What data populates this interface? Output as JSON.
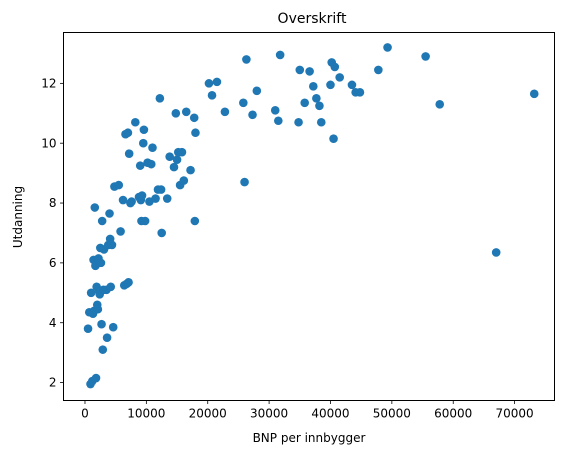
{
  "chart_data": {
    "type": "scatter",
    "title": "Overskrift",
    "xlabel": "BNP per innbygger",
    "ylabel": "Utdanning",
    "xlim": [
      -3500,
      76500
    ],
    "ylim": [
      1.4,
      13.7
    ],
    "x_ticks": [
      0,
      10000,
      20000,
      30000,
      40000,
      50000,
      60000,
      70000
    ],
    "x_tick_labels": [
      "0",
      "10000",
      "20000",
      "30000",
      "40000",
      "50000",
      "60000",
      "70000"
    ],
    "y_ticks": [
      2,
      4,
      6,
      8,
      10,
      12
    ],
    "y_tick_labels": [
      "2",
      "4",
      "6",
      "8",
      "10",
      "12"
    ],
    "grid": false,
    "legend": "none",
    "marker_color": "#1f77b4",
    "points": [
      [
        500,
        3.8
      ],
      [
        700,
        4.35
      ],
      [
        900,
        1.95
      ],
      [
        1000,
        5.0
      ],
      [
        1200,
        2.05
      ],
      [
        1300,
        4.3
      ],
      [
        1400,
        6.1
      ],
      [
        1500,
        4.4
      ],
      [
        1600,
        7.85
      ],
      [
        1700,
        5.9
      ],
      [
        1800,
        2.15
      ],
      [
        1900,
        5.2
      ],
      [
        2000,
        4.6
      ],
      [
        2100,
        4.45
      ],
      [
        2200,
        6.15
      ],
      [
        2300,
        5.05
      ],
      [
        2400,
        4.95
      ],
      [
        2500,
        6.5
      ],
      [
        2600,
        6.0
      ],
      [
        2700,
        3.95
      ],
      [
        2800,
        7.4
      ],
      [
        2900,
        3.1
      ],
      [
        3000,
        5.1
      ],
      [
        3100,
        6.45
      ],
      [
        3500,
        5.1
      ],
      [
        3600,
        3.5
      ],
      [
        3800,
        6.6
      ],
      [
        4000,
        7.65
      ],
      [
        4100,
        6.8
      ],
      [
        4200,
        5.2
      ],
      [
        4400,
        6.6
      ],
      [
        4600,
        3.85
      ],
      [
        4800,
        8.55
      ],
      [
        5500,
        8.6
      ],
      [
        5800,
        7.05
      ],
      [
        6200,
        8.1
      ],
      [
        6400,
        5.25
      ],
      [
        6600,
        10.3
      ],
      [
        6800,
        5.3
      ],
      [
        7000,
        10.35
      ],
      [
        7100,
        5.35
      ],
      [
        7200,
        9.65
      ],
      [
        7400,
        8.0
      ],
      [
        7600,
        8.05
      ],
      [
        8200,
        10.7
      ],
      [
        8800,
        8.2
      ],
      [
        9000,
        9.25
      ],
      [
        9100,
        8.1
      ],
      [
        9200,
        7.4
      ],
      [
        9300,
        8.25
      ],
      [
        9500,
        10.0
      ],
      [
        9600,
        10.45
      ],
      [
        9800,
        7.4
      ],
      [
        10200,
        9.35
      ],
      [
        10500,
        8.05
      ],
      [
        10800,
        9.3
      ],
      [
        11000,
        9.85
      ],
      [
        11500,
        8.15
      ],
      [
        11900,
        8.45
      ],
      [
        12200,
        11.5
      ],
      [
        12400,
        8.45
      ],
      [
        12500,
        7.0
      ],
      [
        13400,
        8.15
      ],
      [
        13800,
        9.55
      ],
      [
        14500,
        9.2
      ],
      [
        14800,
        11.0
      ],
      [
        15000,
        9.45
      ],
      [
        15200,
        9.7
      ],
      [
        15500,
        8.6
      ],
      [
        15800,
        9.7
      ],
      [
        16100,
        8.75
      ],
      [
        16500,
        11.05
      ],
      [
        17200,
        9.1
      ],
      [
        17800,
        10.85
      ],
      [
        17900,
        7.4
      ],
      [
        18000,
        10.35
      ],
      [
        20200,
        12.0
      ],
      [
        20700,
        11.6
      ],
      [
        21500,
        12.05
      ],
      [
        22800,
        11.05
      ],
      [
        25800,
        11.35
      ],
      [
        26000,
        8.7
      ],
      [
        26300,
        12.8
      ],
      [
        27300,
        10.95
      ],
      [
        28000,
        11.75
      ],
      [
        31000,
        11.1
      ],
      [
        31500,
        10.75
      ],
      [
        31800,
        12.95
      ],
      [
        34800,
        10.7
      ],
      [
        35000,
        12.45
      ],
      [
        35800,
        11.35
      ],
      [
        36600,
        12.4
      ],
      [
        37200,
        11.9
      ],
      [
        37700,
        11.5
      ],
      [
        38200,
        11.25
      ],
      [
        38500,
        10.7
      ],
      [
        40000,
        11.95
      ],
      [
        40200,
        12.7
      ],
      [
        40500,
        10.15
      ],
      [
        40700,
        12.55
      ],
      [
        41500,
        12.2
      ],
      [
        43500,
        11.95
      ],
      [
        44100,
        11.7
      ],
      [
        44800,
        11.7
      ],
      [
        47800,
        12.45
      ],
      [
        49300,
        13.2
      ],
      [
        55500,
        12.9
      ],
      [
        57800,
        11.3
      ],
      [
        67000,
        6.35
      ],
      [
        73200,
        11.65
      ]
    ]
  }
}
